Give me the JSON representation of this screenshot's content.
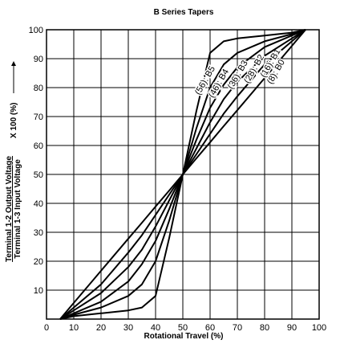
{
  "chart_data": {
    "type": "line",
    "title": "B Series Tapers",
    "x_label": "Rotational Travel (%)",
    "y_label_top": "Terminal 1-2 Output Voltage",
    "y_label_bottom": "Terminal 1-3 Input Voltage",
    "y_label_suffix": "X 100 (%)",
    "x": [
      5,
      10,
      20,
      30,
      35,
      40,
      45,
      50,
      55,
      60,
      65,
      70,
      80,
      90,
      95
    ],
    "series": [
      {
        "name": "(8): B0",
        "color": "#000000",
        "values": [
          0,
          5.6,
          16.7,
          27.8,
          33.3,
          38.9,
          44.4,
          50,
          55.6,
          61.1,
          66.7,
          72.2,
          83.3,
          94.4,
          100
        ]
      },
      {
        "name": "(16): B1",
        "color": "#000000",
        "values": [
          0,
          4,
          12,
          23,
          29,
          36,
          43,
          50,
          57,
          64,
          71,
          77,
          88,
          96,
          100
        ]
      },
      {
        "name": "(28): B2",
        "color": "#000000",
        "values": [
          0,
          3,
          9,
          18,
          24,
          32,
          41,
          50,
          59,
          68,
          76,
          82,
          91,
          97,
          100
        ]
      },
      {
        "name": "(36): B3",
        "color": "#000000",
        "values": [
          0,
          2,
          6,
          13,
          19,
          27,
          38,
          50,
          62,
          73,
          81,
          87,
          94,
          98,
          100
        ]
      },
      {
        "name": "(46): B4",
        "color": "#000000",
        "values": [
          0,
          1.5,
          4,
          8,
          12,
          20,
          34,
          50,
          66,
          80,
          88,
          92,
          96,
          98.5,
          100
        ]
      },
      {
        "name": "(56): B5",
        "color": "#000000",
        "values": [
          0,
          1,
          2,
          3,
          4,
          8,
          28,
          50,
          72,
          92,
          96,
          97,
          98,
          99,
          100
        ]
      }
    ],
    "xlim": [
      0,
      100
    ],
    "ylim": [
      0,
      100
    ],
    "xticks": [
      0,
      10,
      20,
      30,
      40,
      50,
      60,
      70,
      80,
      90,
      100
    ],
    "yticks": [
      10,
      20,
      30,
      40,
      50,
      60,
      70,
      80,
      90,
      100
    ],
    "grid": true
  }
}
